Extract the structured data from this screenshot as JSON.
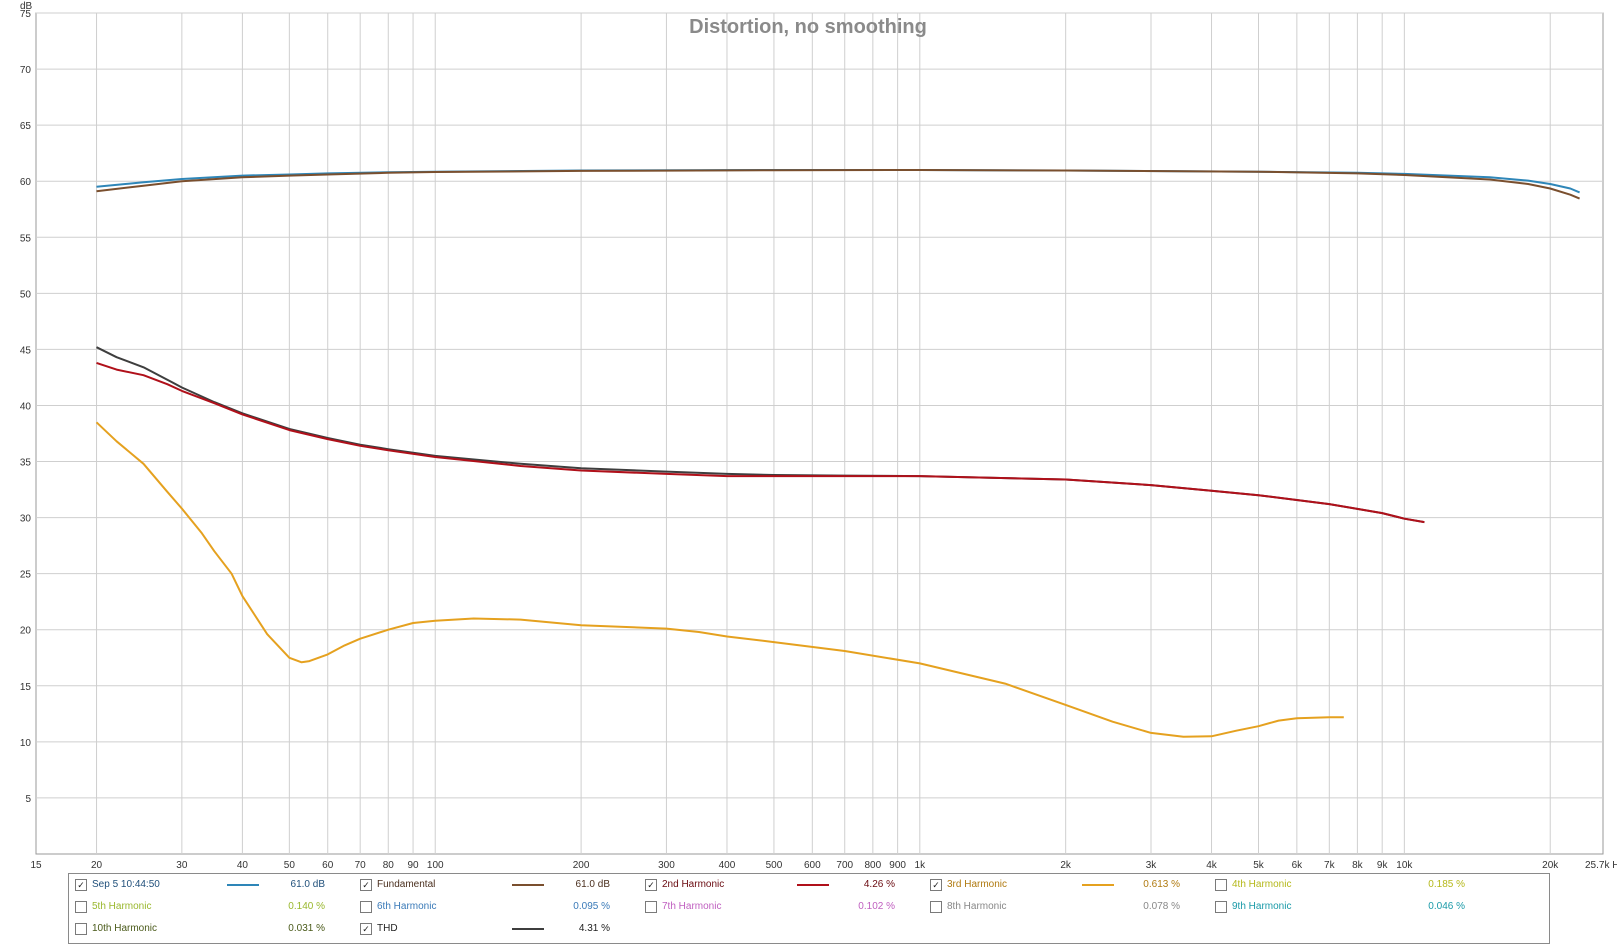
{
  "chart_data": {
    "type": "line",
    "title": "Distortion, no smoothing",
    "ylabel": "dB",
    "xlabel": "Hz",
    "x_scale": "log",
    "xlim": [
      15,
      25700
    ],
    "ylim": [
      0,
      75
    ],
    "grid": true,
    "legend_position": "bottom",
    "y_ticks": [
      {
        "v": 75,
        "label": "75"
      },
      {
        "v": 70,
        "label": "70"
      },
      {
        "v": 65,
        "label": "65"
      },
      {
        "v": 60,
        "label": "60"
      },
      {
        "v": 55,
        "label": "55"
      },
      {
        "v": 50,
        "label": "50"
      },
      {
        "v": 45,
        "label": "45"
      },
      {
        "v": 40,
        "label": "40"
      },
      {
        "v": 35,
        "label": "35"
      },
      {
        "v": 30,
        "label": "30"
      },
      {
        "v": 25,
        "label": "25"
      },
      {
        "v": 20,
        "label": "20"
      },
      {
        "v": 15,
        "label": "15"
      },
      {
        "v": 10,
        "label": "10"
      },
      {
        "v": 5,
        "label": "5"
      }
    ],
    "x_ticks": [
      {
        "v": 15,
        "label": "15"
      },
      {
        "v": 20,
        "label": "20"
      },
      {
        "v": 30,
        "label": "30"
      },
      {
        "v": 40,
        "label": "40"
      },
      {
        "v": 50,
        "label": "50"
      },
      {
        "v": 60,
        "label": "60"
      },
      {
        "v": 70,
        "label": "70"
      },
      {
        "v": 80,
        "label": "80"
      },
      {
        "v": 90,
        "label": "90"
      },
      {
        "v": 100,
        "label": "100"
      },
      {
        "v": 200,
        "label": "200"
      },
      {
        "v": 300,
        "label": "300"
      },
      {
        "v": 400,
        "label": "400"
      },
      {
        "v": 500,
        "label": "500"
      },
      {
        "v": 600,
        "label": "600"
      },
      {
        "v": 700,
        "label": "700"
      },
      {
        "v": 800,
        "label": "800"
      },
      {
        "v": 900,
        "label": "900"
      },
      {
        "v": 1000,
        "label": "1k"
      },
      {
        "v": 2000,
        "label": "2k"
      },
      {
        "v": 3000,
        "label": "3k"
      },
      {
        "v": 4000,
        "label": "4k"
      },
      {
        "v": 5000,
        "label": "5k"
      },
      {
        "v": 6000,
        "label": "6k"
      },
      {
        "v": 7000,
        "label": "7k"
      },
      {
        "v": 8000,
        "label": "8k"
      },
      {
        "v": 9000,
        "label": "9k"
      },
      {
        "v": 10000,
        "label": "10k"
      },
      {
        "v": 20000,
        "label": "20k"
      },
      {
        "v": 25700,
        "label": "25.7k Hz"
      }
    ],
    "series": [
      {
        "name": "Sep 5 10:44:50",
        "color": "#2e86b8",
        "visible": true,
        "x": [
          20,
          25,
          30,
          40,
          50,
          60,
          80,
          100,
          200,
          500,
          1000,
          2000,
          5000,
          8000,
          10000,
          15000,
          18000,
          20000,
          22000,
          23000
        ],
        "y": [
          59.5,
          59.9,
          60.2,
          60.5,
          60.6,
          60.7,
          60.8,
          60.85,
          60.95,
          61.0,
          61.0,
          60.95,
          60.85,
          60.75,
          60.65,
          60.35,
          60.05,
          59.75,
          59.35,
          59.0
        ]
      },
      {
        "name": "Fundamental",
        "color": "#7a4f2e",
        "visible": true,
        "x": [
          20,
          25,
          30,
          40,
          50,
          60,
          80,
          100,
          200,
          500,
          1000,
          2000,
          5000,
          8000,
          10000,
          15000,
          18000,
          20000,
          22000,
          23000
        ],
        "y": [
          59.1,
          59.6,
          60.0,
          60.35,
          60.5,
          60.6,
          60.75,
          60.82,
          60.92,
          60.98,
          61.0,
          60.95,
          60.85,
          60.7,
          60.55,
          60.15,
          59.75,
          59.35,
          58.8,
          58.45
        ]
      },
      {
        "name": "2nd Harmonic",
        "color": "#b0101a",
        "visible": true,
        "x": [
          20,
          22,
          25,
          28,
          30,
          35,
          40,
          50,
          60,
          70,
          80,
          100,
          150,
          200,
          300,
          400,
          500,
          700,
          1000,
          2000,
          3000,
          4000,
          5000,
          7000,
          9000,
          10000,
          11000
        ],
        "y": [
          43.8,
          43.2,
          42.7,
          41.9,
          41.3,
          40.2,
          39.2,
          37.8,
          37.0,
          36.4,
          36.0,
          35.4,
          34.6,
          34.2,
          33.9,
          33.7,
          33.7,
          33.7,
          33.7,
          33.4,
          32.9,
          32.4,
          32.0,
          31.2,
          30.4,
          29.9,
          29.6
        ]
      },
      {
        "name": "3rd Harmonic",
        "color": "#e5a11f",
        "visible": true,
        "x": [
          20,
          22,
          25,
          28,
          30,
          33,
          35,
          38,
          40,
          45,
          50,
          53,
          55,
          60,
          65,
          70,
          80,
          90,
          100,
          120,
          150,
          200,
          300,
          350,
          400,
          500,
          700,
          1000,
          1500,
          2000,
          2500,
          3000,
          3500,
          4000,
          4500,
          5000,
          5500,
          6000,
          7000,
          7500
        ],
        "y": [
          38.5,
          36.8,
          34.8,
          32.3,
          30.8,
          28.6,
          27.0,
          25.0,
          23.0,
          19.6,
          17.5,
          17.1,
          17.2,
          17.8,
          18.6,
          19.2,
          20.0,
          20.6,
          20.8,
          21.0,
          20.9,
          20.4,
          20.1,
          19.8,
          19.4,
          18.9,
          18.1,
          17.0,
          15.2,
          13.3,
          11.8,
          10.8,
          10.45,
          10.5,
          11.0,
          11.4,
          11.9,
          12.1,
          12.2,
          12.2
        ]
      },
      {
        "name": "4th Harmonic",
        "color": "#b5b81a",
        "visible": false
      },
      {
        "name": "5th Harmonic",
        "color": "#9ab82e",
        "visible": false
      },
      {
        "name": "6th Harmonic",
        "color": "#3a7ab8",
        "visible": false
      },
      {
        "name": "7th Harmonic",
        "color": "#c060c0",
        "visible": false
      },
      {
        "name": "8th Harmonic",
        "color": "#888888",
        "visible": false
      },
      {
        "name": "9th Harmonic",
        "color": "#1a9aa8",
        "visible": false
      },
      {
        "name": "10th Harmonic",
        "color": "#4a5a1a",
        "visible": false
      },
      {
        "name": "THD",
        "color": "#3e3e3e",
        "visible": true,
        "x": [
          20,
          22,
          25,
          28,
          30,
          35,
          40,
          50,
          60,
          70,
          80,
          100,
          150,
          200,
          300,
          400,
          500,
          700,
          1000,
          2000,
          3000,
          4000,
          5000,
          7000,
          9000,
          10000,
          11000
        ],
        "y": [
          45.2,
          44.3,
          43.4,
          42.3,
          41.6,
          40.3,
          39.3,
          37.9,
          37.1,
          36.5,
          36.1,
          35.5,
          34.8,
          34.4,
          34.1,
          33.9,
          33.8,
          33.75,
          33.7,
          33.4,
          32.9,
          32.4,
          32.0,
          31.2,
          30.4,
          29.9,
          29.6
        ]
      }
    ]
  },
  "legend": {
    "rows": [
      [
        {
          "name": "Sep 5 10:44:50",
          "checked": true,
          "check_mark": "✓",
          "value": "61.0 dB",
          "color": "#2e86b8",
          "text_color": "#1f4f7a",
          "has_swatch": true
        },
        {
          "name": "Fundamental",
          "checked": true,
          "check_mark": "✓",
          "value": "61.0 dB",
          "color": "#7a4f2e",
          "text_color": "#4a2f1e",
          "has_swatch": true
        },
        {
          "name": "2nd Harmonic",
          "checked": true,
          "check_mark": "✓",
          "value": "4.26 %",
          "color": "#b0101a",
          "text_color": "#6a0a10",
          "has_swatch": true
        },
        {
          "name": "3rd Harmonic",
          "checked": true,
          "check_mark": "✓",
          "value": "0.613 %",
          "color": "#e5a11f",
          "text_color": "#b07a10",
          "has_swatch": true
        },
        {
          "name": "4th Harmonic",
          "checked": false,
          "check_mark": "",
          "value": "0.185 %",
          "color": "#b5b81a",
          "text_color": "#b5b81a",
          "has_swatch": false
        }
      ],
      [
        {
          "name": "5th Harmonic",
          "checked": false,
          "check_mark": "",
          "value": "0.140 %",
          "color": "#9ab82e",
          "text_color": "#9ab82e",
          "has_swatch": false
        },
        {
          "name": "6th Harmonic",
          "checked": false,
          "check_mark": "",
          "value": "0.095 %",
          "color": "#3a7ab8",
          "text_color": "#3a7ab8",
          "has_swatch": false
        },
        {
          "name": "7th Harmonic",
          "checked": false,
          "check_mark": "",
          "value": "0.102 %",
          "color": "#c060c0",
          "text_color": "#c060c0",
          "has_swatch": false
        },
        {
          "name": "8th Harmonic",
          "checked": false,
          "check_mark": "",
          "value": "0.078 %",
          "color": "#888888",
          "text_color": "#888888",
          "has_swatch": false
        },
        {
          "name": "9th Harmonic",
          "checked": false,
          "check_mark": "",
          "value": "0.046 %",
          "color": "#1a9aa8",
          "text_color": "#1a9aa8",
          "has_swatch": false
        }
      ],
      [
        {
          "name": "10th Harmonic",
          "checked": false,
          "check_mark": "",
          "value": "0.031 %",
          "color": "#4a5a1a",
          "text_color": "#4a5a1a",
          "has_swatch": false
        },
        {
          "name": "THD",
          "checked": true,
          "check_mark": "✓",
          "value": "4.31 %",
          "color": "#3e3e3e",
          "text_color": "#222222",
          "has_swatch": true
        }
      ]
    ]
  }
}
